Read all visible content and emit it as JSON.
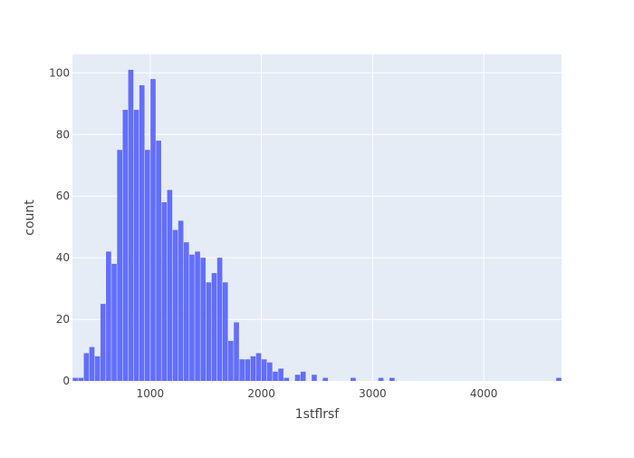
{
  "chart_data": {
    "type": "bar",
    "chart_kind": "histogram",
    "title": "",
    "xlabel": "1stflrsf",
    "ylabel": "count",
    "bin_width": 50,
    "xlim": [
      300,
      4700
    ],
    "ylim": [
      0,
      106
    ],
    "x_ticks": [
      1000,
      2000,
      3000,
      4000
    ],
    "x_tick_labels": [
      "1000",
      "2000",
      "3000",
      "4000"
    ],
    "y_ticks": [
      0,
      20,
      40,
      60,
      80,
      100
    ],
    "y_tick_labels": [
      "0",
      "20",
      "40",
      "60",
      "80",
      "100"
    ],
    "grid": true,
    "colors": {
      "bar": "#636efa",
      "plot_bg": "#e5ecf6",
      "grid": "#ffffff"
    },
    "bins": [
      {
        "x": 325,
        "count": 1
      },
      {
        "x": 375,
        "count": 1
      },
      {
        "x": 425,
        "count": 9
      },
      {
        "x": 475,
        "count": 11
      },
      {
        "x": 525,
        "count": 8
      },
      {
        "x": 575,
        "count": 25
      },
      {
        "x": 625,
        "count": 42
      },
      {
        "x": 675,
        "count": 38
      },
      {
        "x": 725,
        "count": 75
      },
      {
        "x": 775,
        "count": 88
      },
      {
        "x": 825,
        "count": 101
      },
      {
        "x": 875,
        "count": 88
      },
      {
        "x": 925,
        "count": 96
      },
      {
        "x": 975,
        "count": 75
      },
      {
        "x": 1025,
        "count": 98
      },
      {
        "x": 1075,
        "count": 78
      },
      {
        "x": 1125,
        "count": 58
      },
      {
        "x": 1175,
        "count": 62
      },
      {
        "x": 1225,
        "count": 49
      },
      {
        "x": 1275,
        "count": 52
      },
      {
        "x": 1325,
        "count": 45
      },
      {
        "x": 1375,
        "count": 41
      },
      {
        "x": 1425,
        "count": 42
      },
      {
        "x": 1475,
        "count": 40
      },
      {
        "x": 1525,
        "count": 32
      },
      {
        "x": 1575,
        "count": 35
      },
      {
        "x": 1625,
        "count": 40
      },
      {
        "x": 1675,
        "count": 32
      },
      {
        "x": 1725,
        "count": 13
      },
      {
        "x": 1775,
        "count": 19
      },
      {
        "x": 1825,
        "count": 7
      },
      {
        "x": 1875,
        "count": 7
      },
      {
        "x": 1925,
        "count": 8
      },
      {
        "x": 1975,
        "count": 9
      },
      {
        "x": 2025,
        "count": 7
      },
      {
        "x": 2075,
        "count": 6
      },
      {
        "x": 2125,
        "count": 3
      },
      {
        "x": 2175,
        "count": 4
      },
      {
        "x": 2225,
        "count": 1
      },
      {
        "x": 2325,
        "count": 2
      },
      {
        "x": 2375,
        "count": 3
      },
      {
        "x": 2475,
        "count": 2
      },
      {
        "x": 2575,
        "count": 1
      },
      {
        "x": 2825,
        "count": 1
      },
      {
        "x": 3075,
        "count": 1
      },
      {
        "x": 3175,
        "count": 1
      },
      {
        "x": 4675,
        "count": 1
      }
    ]
  }
}
